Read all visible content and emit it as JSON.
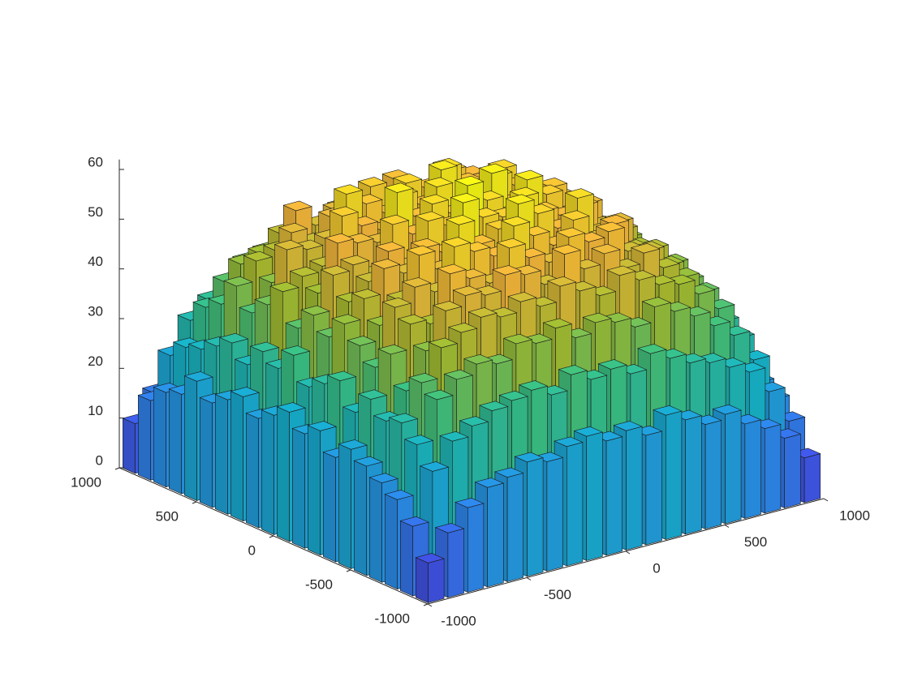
{
  "chart_data": {
    "type": "bar3",
    "x": [
      -950,
      -850,
      -750,
      -650,
      -550,
      -450,
      -350,
      -250,
      -150,
      -50,
      50,
      150,
      250,
      350,
      450,
      550,
      650,
      750,
      850,
      950
    ],
    "y": [
      -950,
      -850,
      -750,
      -650,
      -550,
      -450,
      -350,
      -250,
      -150,
      -50,
      50,
      150,
      250,
      350,
      450,
      550,
      650,
      750,
      850,
      950
    ],
    "bin_width": 100,
    "values": [
      [
        8,
        14,
        18,
        20,
        22,
        24,
        21,
        25,
        23,
        26,
        24,
        22,
        25,
        23,
        21,
        24,
        20,
        19,
        16,
        10
      ],
      [
        13,
        24,
        28,
        31,
        30,
        33,
        29,
        34,
        32,
        30,
        35,
        31,
        33,
        29,
        32,
        30,
        28,
        27,
        24,
        15
      ],
      [
        17,
        29,
        36,
        38,
        35,
        41,
        37,
        40,
        43,
        39,
        42,
        38,
        44,
        40,
        37,
        41,
        36,
        34,
        30,
        20
      ],
      [
        20,
        31,
        39,
        44,
        42,
        46,
        48,
        43,
        47,
        45,
        49,
        44,
        46,
        50,
        42,
        45,
        43,
        38,
        33,
        22
      ],
      [
        21,
        33,
        41,
        46,
        49,
        45,
        51,
        47,
        52,
        48,
        50,
        53,
        47,
        49,
        51,
        46,
        44,
        41,
        35,
        24
      ],
      [
        23,
        34,
        40,
        48,
        51,
        54,
        49,
        55,
        50,
        53,
        47,
        52,
        56,
        50,
        48,
        53,
        47,
        42,
        36,
        25
      ],
      [
        22,
        35,
        43,
        47,
        50,
        52,
        57,
        51,
        54,
        49,
        56,
        51,
        53,
        58,
        52,
        49,
        48,
        43,
        37,
        23
      ],
      [
        24,
        33,
        42,
        49,
        53,
        50,
        55,
        59,
        52,
        57,
        53,
        60,
        51,
        55,
        54,
        51,
        46,
        44,
        35,
        26
      ],
      [
        25,
        36,
        44,
        47,
        52,
        56,
        53,
        54,
        61,
        55,
        58,
        54,
        57,
        52,
        56,
        50,
        49,
        42,
        38,
        24
      ],
      [
        23,
        34,
        41,
        50,
        49,
        53,
        58,
        56,
        57,
        62,
        55,
        59,
        54,
        57,
        53,
        52,
        47,
        45,
        36,
        25
      ],
      [
        24,
        35,
        43,
        48,
        54,
        51,
        55,
        60,
        56,
        58,
        57,
        53,
        60,
        55,
        51,
        54,
        48,
        43,
        37,
        24
      ],
      [
        22,
        33,
        42,
        46,
        50,
        55,
        52,
        57,
        59,
        54,
        61,
        56,
        55,
        58,
        52,
        50,
        46,
        44,
        35,
        23
      ],
      [
        25,
        36,
        40,
        49,
        52,
        53,
        56,
        53,
        55,
        60,
        54,
        58,
        52,
        54,
        55,
        49,
        47,
        42,
        38,
        25
      ],
      [
        23,
        34,
        43,
        47,
        48,
        54,
        51,
        58,
        53,
        56,
        52,
        55,
        57,
        51,
        53,
        50,
        45,
        43,
        36,
        22
      ],
      [
        21,
        32,
        41,
        45,
        50,
        49,
        53,
        50,
        54,
        51,
        55,
        50,
        53,
        52,
        48,
        47,
        46,
        40,
        34,
        23
      ],
      [
        22,
        31,
        39,
        44,
        46,
        48,
        47,
        51,
        49,
        52,
        48,
        51,
        49,
        47,
        49,
        45,
        43,
        39,
        33,
        21
      ],
      [
        19,
        29,
        36,
        41,
        43,
        44,
        46,
        45,
        47,
        44,
        46,
        45,
        44,
        46,
        42,
        43,
        40,
        37,
        31,
        20
      ],
      [
        17,
        27,
        33,
        37,
        39,
        40,
        42,
        41,
        40,
        43,
        41,
        42,
        39,
        41,
        40,
        38,
        36,
        33,
        28,
        17
      ],
      [
        14,
        22,
        27,
        30,
        32,
        33,
        31,
        34,
        33,
        32,
        35,
        33,
        32,
        31,
        33,
        30,
        29,
        27,
        23,
        14
      ],
      [
        9,
        15,
        18,
        20,
        21,
        22,
        20,
        23,
        22,
        21,
        24,
        22,
        21,
        20,
        22,
        21,
        19,
        17,
        15,
        10
      ]
    ],
    "xlim": [
      -1000,
      1000
    ],
    "ylim": [
      -1000,
      1000
    ],
    "zlim": [
      0,
      62
    ],
    "xticks": [
      -1000,
      -500,
      0,
      500,
      1000
    ],
    "yticks": [
      -1000,
      -500,
      0,
      500,
      1000
    ],
    "zticks": [
      0,
      10,
      20,
      30,
      40,
      50,
      60
    ],
    "colormap": [
      "#3e26a8",
      "#4258ee",
      "#2d8ef0",
      "#16b6d0",
      "#3cc583",
      "#a8c131",
      "#f9bb3c",
      "#f9fb15"
    ]
  }
}
